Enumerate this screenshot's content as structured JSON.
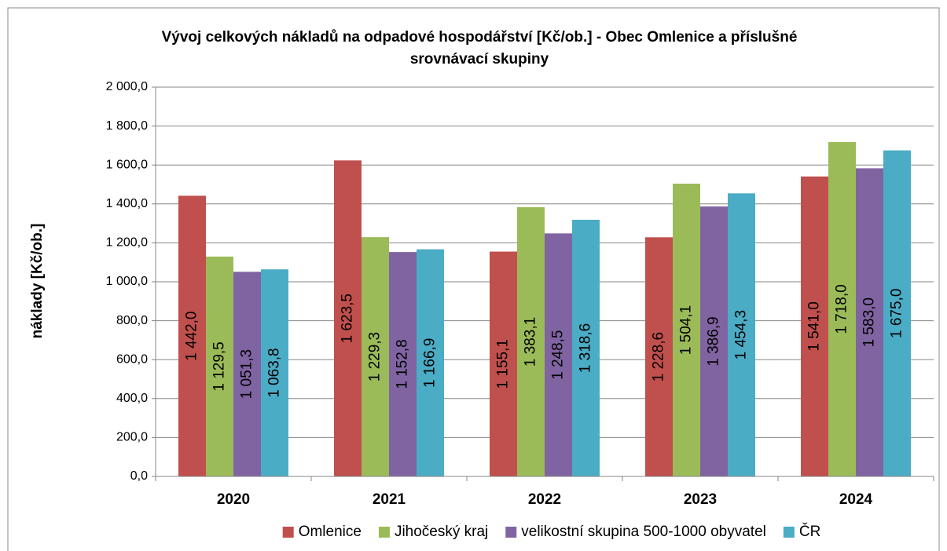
{
  "chart_data": {
    "type": "bar",
    "title": "Vývoj celkových nákladů na odpadové hospodářství [Kč/ob.] - Obec Omlenice a příslušné srovnávací skupiny",
    "y_label": "náklady [Kč/ob.]",
    "categories": [
      "2020",
      "2021",
      "2022",
      "2023",
      "2024"
    ],
    "series": [
      {
        "name": "Omlenice",
        "color": "#c0504d",
        "values": [
          1442.0,
          1623.5,
          1155.1,
          1228.6,
          1541.0
        ],
        "value_labels": [
          "1 442,0",
          "1 623,5",
          "1 155,1",
          "1 228,6",
          "1 541,0"
        ]
      },
      {
        "name": "Jihočeský kraj",
        "color": "#9bbb59",
        "values": [
          1129.5,
          1229.3,
          1383.1,
          1504.1,
          1718.0
        ],
        "value_labels": [
          "1 129,5",
          "1 229,3",
          "1 383,1",
          "1 504,1",
          "1 718,0"
        ]
      },
      {
        "name": "velikostní skupina 500-1000 obyvatel",
        "color": "#8064a2",
        "values": [
          1051.3,
          1152.8,
          1248.5,
          1386.9,
          1583.0
        ],
        "value_labels": [
          "1 051,3",
          "1 152,8",
          "1 248,5",
          "1 386,9",
          "1 583,0"
        ]
      },
      {
        "name": "ČR",
        "color": "#4bacc6",
        "values": [
          1063.8,
          1166.9,
          1318.6,
          1454.3,
          1675.0
        ],
        "value_labels": [
          "1 063,8",
          "1 166,9",
          "1 318,6",
          "1 454,3",
          "1 675,0"
        ]
      }
    ],
    "ylim": [
      0,
      2000
    ],
    "yticks": [
      {
        "value": 0,
        "label": "0,0"
      },
      {
        "value": 200,
        "label": "200,0"
      },
      {
        "value": 400,
        "label": "400,0"
      },
      {
        "value": 600,
        "label": "600,0"
      },
      {
        "value": 800,
        "label": "800,0"
      },
      {
        "value": 1000,
        "label": "1 000,0"
      },
      {
        "value": 1200,
        "label": "1 200,0"
      },
      {
        "value": 1400,
        "label": "1 400,0"
      },
      {
        "value": 1600,
        "label": "1 600,0"
      },
      {
        "value": 1800,
        "label": "1 800,0"
      },
      {
        "value": 2000,
        "label": "2 000,0"
      }
    ],
    "grid": true,
    "legend": "bottom"
  }
}
